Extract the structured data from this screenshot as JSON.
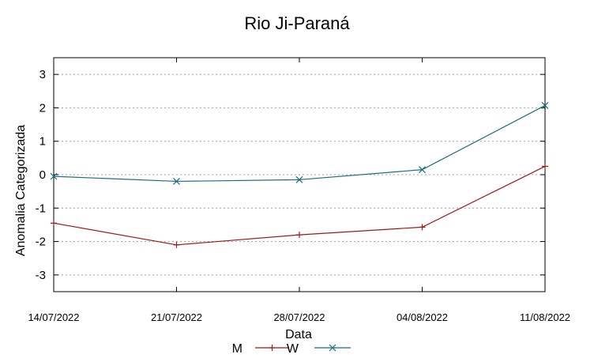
{
  "chart_data": {
    "type": "line",
    "title": "Rio Ji-Paraná",
    "xlabel": "Data",
    "ylabel": "Anomalia Categorizada",
    "categories": [
      "14/07/2022",
      "21/07/2022",
      "28/07/2022",
      "04/08/2022",
      "11/08/2022"
    ],
    "ylim": [
      -3.5,
      3.5
    ],
    "yticks": [
      3,
      2,
      1,
      0,
      -1,
      -2,
      -3
    ],
    "ytick_labels": [
      "3",
      "2",
      "1",
      "0",
      "-1",
      "-2",
      "-3"
    ],
    "grid": true,
    "legend": "bottom-center",
    "series": [
      {
        "name": "M",
        "marker": "plus",
        "color": "#a01818",
        "values": [
          -1.45,
          -2.1,
          -1.8,
          -1.57,
          0.25
        ]
      },
      {
        "name": "W",
        "marker": "cross",
        "color": "#1a6f7f",
        "values": [
          -0.05,
          -0.2,
          -0.15,
          0.15,
          2.07
        ]
      }
    ]
  }
}
